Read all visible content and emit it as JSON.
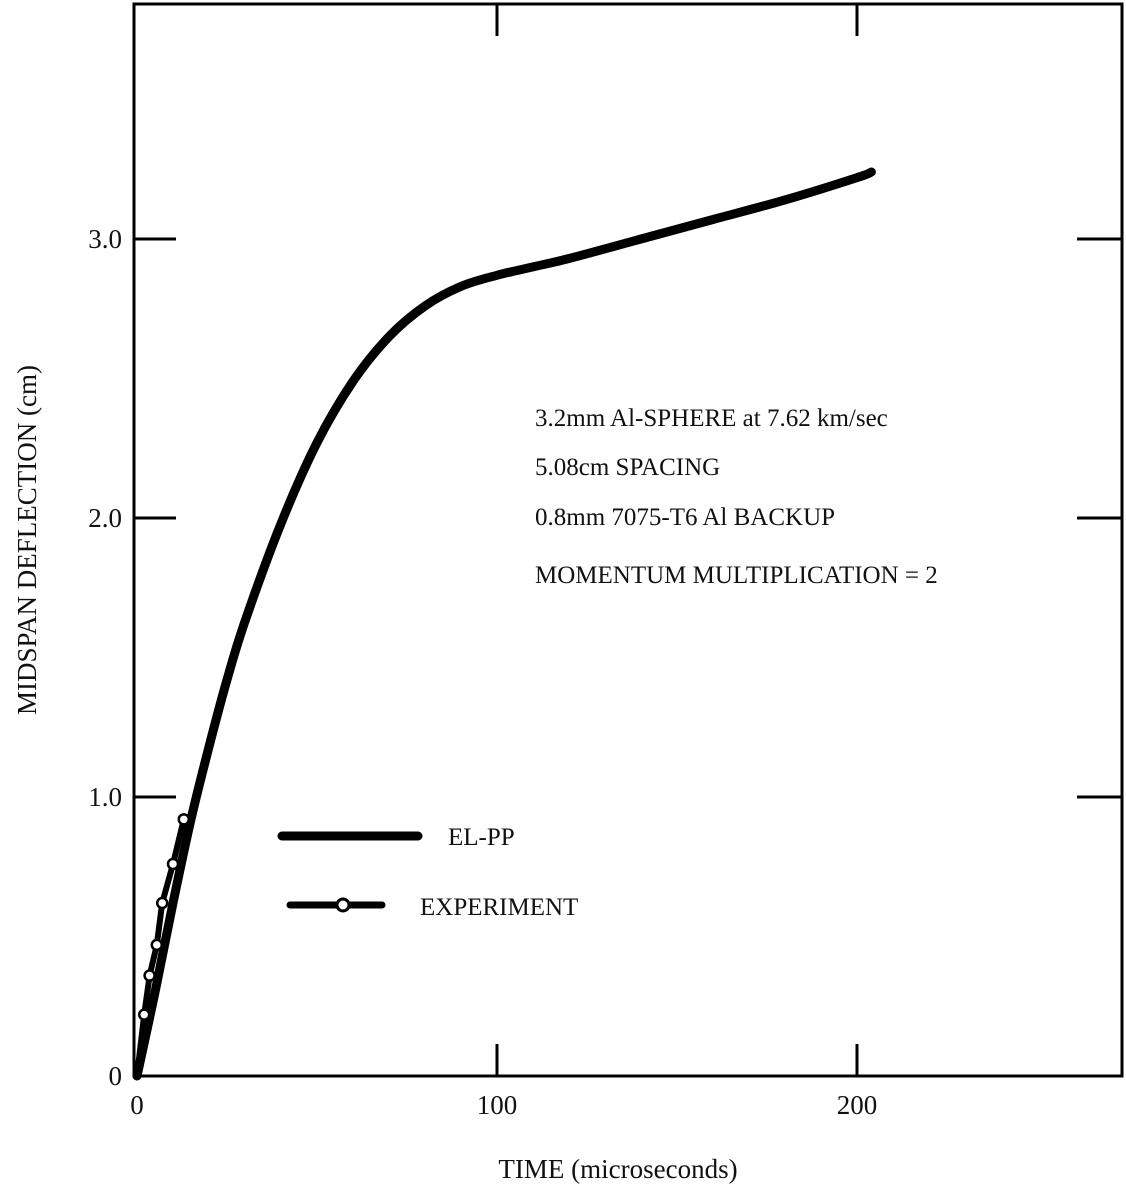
{
  "chart_data": {
    "type": "line",
    "title": "",
    "xlabel": "TIME (microseconds)",
    "ylabel": "MIDSPAN DEFLECTION (cm)",
    "xlim": [
      0,
      265
    ],
    "ylim": [
      0,
      3.75
    ],
    "x_ticks": [
      {
        "value": 0,
        "label": "0"
      },
      {
        "value": 100,
        "label": "100"
      },
      {
        "value": 200,
        "label": "200"
      }
    ],
    "y_ticks": [
      {
        "value": 0,
        "label": "0"
      },
      {
        "value": 1.0,
        "label": "1.0"
      },
      {
        "value": 2.0,
        "label": "2.0"
      },
      {
        "value": 3.0,
        "label": "3.0"
      }
    ],
    "grid": false,
    "legend_position": "lower-left",
    "series": [
      {
        "name": "EL-PP",
        "style": "solid-thick",
        "color": "#000000",
        "x": [
          0,
          5,
          10,
          15,
          20,
          25,
          30,
          40,
          50,
          60,
          70,
          80,
          90,
          100,
          110,
          120,
          140,
          160,
          180,
          200,
          204
        ],
        "y": [
          0,
          0.3,
          0.62,
          0.92,
          1.18,
          1.42,
          1.63,
          1.98,
          2.27,
          2.49,
          2.65,
          2.76,
          2.83,
          2.87,
          2.9,
          2.93,
          3.0,
          3.07,
          3.14,
          3.22,
          3.24
        ]
      },
      {
        "name": "EXPERIMENT",
        "style": "line-with-open-circles",
        "color": "#000000",
        "x": [
          0,
          2,
          3.5,
          5.5,
          7,
          10,
          13
        ],
        "y": [
          0,
          0.22,
          0.36,
          0.47,
          0.62,
          0.76,
          0.92
        ]
      }
    ],
    "annotations": [
      "3.2mm Al-SPHERE at 7.62 km/sec",
      "5.08cm SPACING",
      "0.8mm 7075-T6 Al BACKUP",
      "MOMENTUM MULTIPLICATION = 2"
    ]
  }
}
